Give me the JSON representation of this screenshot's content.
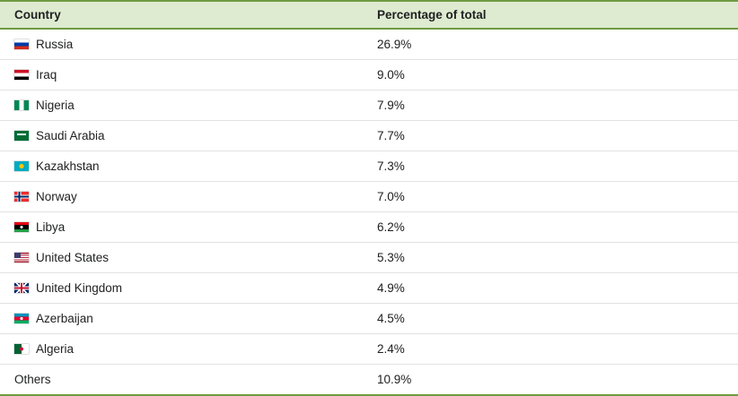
{
  "table": {
    "headers": [
      "Country",
      "Percentage of total"
    ],
    "rows": [
      {
        "country": "Russia",
        "value": "26.9%",
        "flag": "russia"
      },
      {
        "country": "Iraq",
        "value": "9.0%",
        "flag": "iraq"
      },
      {
        "country": "Nigeria",
        "value": "7.9%",
        "flag": "nigeria"
      },
      {
        "country": "Saudi Arabia",
        "value": "7.7%",
        "flag": "saudi-arabia"
      },
      {
        "country": "Kazakhstan",
        "value": "7.3%",
        "flag": "kazakhstan"
      },
      {
        "country": "Norway",
        "value": "7.0%",
        "flag": "norway"
      },
      {
        "country": "Libya",
        "value": "6.2%",
        "flag": "libya"
      },
      {
        "country": "United States",
        "value": "5.3%",
        "flag": "usa"
      },
      {
        "country": "United Kingdom",
        "value": "4.9%",
        "flag": "uk"
      },
      {
        "country": "Azerbaijan",
        "value": "4.5%",
        "flag": "azerbaijan"
      },
      {
        "country": "Algeria",
        "value": "2.4%",
        "flag": "algeria"
      },
      {
        "country": "Others",
        "value": "10.9%",
        "flag": null
      }
    ]
  },
  "chart_data": {
    "type": "table",
    "title": "",
    "columns": [
      "Country",
      "Percentage of total"
    ],
    "categories": [
      "Russia",
      "Iraq",
      "Nigeria",
      "Saudi Arabia",
      "Kazakhstan",
      "Norway",
      "Libya",
      "United States",
      "United Kingdom",
      "Azerbaijan",
      "Algeria",
      "Others"
    ],
    "values": [
      26.9,
      9.0,
      7.9,
      7.7,
      7.3,
      7.0,
      6.2,
      5.3,
      4.9,
      4.5,
      2.4,
      10.9
    ],
    "value_unit": "%"
  },
  "colors": {
    "header_bg": "#deebd0",
    "accent_green": "#6f9a41",
    "row_border": "#e2e2e2",
    "text_color": "#202122"
  }
}
